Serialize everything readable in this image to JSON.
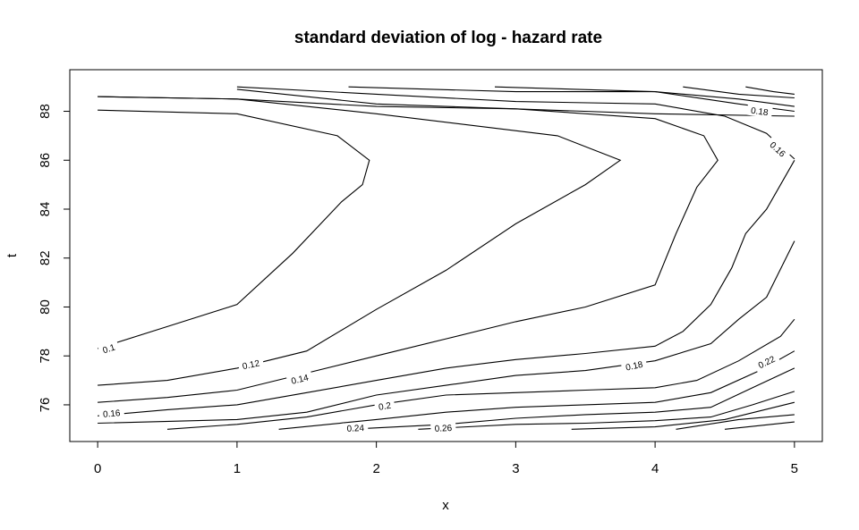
{
  "chart_data": {
    "type": "contour",
    "title": "standard deviation of log - hazard rate",
    "xlabel": "x",
    "ylabel": "t",
    "xlim": [
      -0.2,
      5.2
    ],
    "ylim": [
      74.5,
      89.7
    ],
    "x_ticks": [
      0,
      1,
      2,
      3,
      4,
      5
    ],
    "y_ticks": [
      76,
      78,
      80,
      82,
      84,
      86,
      88
    ],
    "grid": false,
    "legend": "none",
    "contours": [
      {
        "level": "0.1",
        "points": [
          [
            0,
            78.3
          ],
          [
            0.5,
            79.2
          ],
          [
            1,
            80.1
          ],
          [
            1.4,
            82.2
          ],
          [
            1.75,
            84.3
          ],
          [
            1.9,
            85.0
          ],
          [
            1.95,
            86.0
          ],
          [
            1.72,
            87.0
          ],
          [
            1,
            87.9
          ],
          [
            0,
            88.05
          ]
        ],
        "label_at": [
          0.08,
          78.3
        ]
      },
      {
        "level": null,
        "points": [
          [
            0,
            88.6
          ],
          [
            1,
            88.5
          ],
          [
            2,
            88.2
          ],
          [
            3,
            88.1
          ],
          [
            4,
            87.9
          ],
          [
            5,
            87.8
          ]
        ]
      },
      {
        "level": "0.12",
        "points": [
          [
            0,
            76.8
          ],
          [
            0.5,
            77.0
          ],
          [
            1,
            77.5
          ],
          [
            1.5,
            78.2
          ],
          [
            2,
            79.9
          ],
          [
            2.5,
            81.5
          ],
          [
            3,
            83.4
          ],
          [
            3.5,
            85.0
          ],
          [
            3.75,
            86.0
          ],
          [
            3.3,
            87.0
          ],
          [
            2,
            87.9
          ],
          [
            1,
            88.5
          ],
          [
            0,
            88.6
          ]
        ],
        "label_at": [
          1.1,
          77.65
        ]
      },
      {
        "level": "0.14",
        "points": [
          [
            0,
            76.1
          ],
          [
            0.5,
            76.3
          ],
          [
            1,
            76.6
          ],
          [
            1.5,
            77.3
          ],
          [
            2,
            78.0
          ],
          [
            2.5,
            78.7
          ],
          [
            3,
            79.4
          ],
          [
            3.5,
            80.0
          ],
          [
            4,
            80.9
          ],
          [
            4.15,
            83.0
          ],
          [
            4.3,
            84.9
          ],
          [
            4.45,
            86.0
          ],
          [
            4.35,
            87.0
          ],
          [
            4,
            87.7
          ],
          [
            3,
            88.1
          ],
          [
            2,
            88.3
          ],
          [
            1,
            88.9
          ]
        ],
        "label_at": [
          1.45,
          77.05
        ]
      },
      {
        "level": "0.16",
        "points": [
          [
            0,
            75.55
          ],
          [
            0.5,
            75.8
          ],
          [
            1,
            76.0
          ],
          [
            1.5,
            76.5
          ],
          [
            2,
            77.0
          ],
          [
            2.5,
            77.5
          ],
          [
            3,
            77.85
          ],
          [
            3.5,
            78.1
          ],
          [
            4,
            78.4
          ],
          [
            4.2,
            79.0
          ],
          [
            4.4,
            80.1
          ],
          [
            4.55,
            81.6
          ],
          [
            4.65,
            83.0
          ],
          [
            4.8,
            84.0
          ],
          [
            5,
            86.0
          ]
        ],
        "label_at": [
          0.1,
          75.65
        ]
      },
      {
        "level": "0.18",
        "points": [
          [
            0,
            75.25
          ],
          [
            1,
            75.4
          ],
          [
            1.5,
            75.7
          ],
          [
            2,
            76.4
          ],
          [
            2.5,
            76.8
          ],
          [
            3,
            77.2
          ],
          [
            3.5,
            77.4
          ],
          [
            4,
            77.8
          ],
          [
            4.4,
            78.5
          ],
          [
            4.6,
            79.5
          ],
          [
            4.8,
            80.4
          ],
          [
            5,
            82.7
          ]
        ],
        "label_at": [
          3.85,
          77.6
        ]
      },
      {
        "level": "0.16",
        "points": [
          [
            1,
            89.0
          ],
          [
            2,
            88.7
          ],
          [
            3,
            88.4
          ],
          [
            4,
            88.3
          ],
          [
            4.5,
            87.8
          ],
          [
            4.8,
            87.1
          ],
          [
            5,
            86.05
          ]
        ],
        "label_at": [
          4.88,
          86.45
        ]
      },
      {
        "level": "0.2",
        "points": [
          [
            0.5,
            75.0
          ],
          [
            1,
            75.2
          ],
          [
            1.5,
            75.5
          ],
          [
            2,
            76.0
          ],
          [
            2.5,
            76.4
          ],
          [
            3,
            76.5
          ],
          [
            3.5,
            76.6
          ],
          [
            4,
            76.7
          ],
          [
            4.3,
            77.0
          ],
          [
            4.6,
            77.8
          ],
          [
            4.9,
            78.8
          ],
          [
            5,
            79.5
          ]
        ],
        "label_at": [
          2.06,
          75.95
        ]
      },
      {
        "level": "0.18",
        "points": [
          [
            1.8,
            89.0
          ],
          [
            3,
            88.8
          ],
          [
            4,
            88.8
          ],
          [
            4.6,
            88.3
          ],
          [
            5,
            88.0
          ]
        ],
        "label_at": [
          4.75,
          88.0
        ]
      },
      {
        "level": "0.22",
        "points": [
          [
            1.3,
            75.0
          ],
          [
            2,
            75.4
          ],
          [
            2.5,
            75.7
          ],
          [
            3,
            75.9
          ],
          [
            3.5,
            76.0
          ],
          [
            4,
            76.1
          ],
          [
            4.4,
            76.5
          ],
          [
            4.75,
            77.4
          ],
          [
            5,
            78.2
          ]
        ],
        "label_at": [
          4.8,
          77.75
        ]
      },
      {
        "level": null,
        "points": [
          [
            2.85,
            89.0
          ],
          [
            4,
            88.8
          ],
          [
            4.6,
            88.5
          ],
          [
            5,
            88.2
          ]
        ]
      },
      {
        "level": "0.24",
        "points": [
          [
            1.8,
            75.0
          ],
          [
            2.5,
            75.2
          ],
          [
            3,
            75.45
          ],
          [
            3.5,
            75.6
          ],
          [
            4,
            75.7
          ],
          [
            4.4,
            75.9
          ],
          [
            4.7,
            76.7
          ],
          [
            5,
            77.5
          ]
        ],
        "label_at": [
          1.85,
          75.05
        ]
      },
      {
        "level": null,
        "points": [
          [
            4.2,
            89.0
          ],
          [
            4.6,
            88.7
          ],
          [
            5,
            88.55
          ]
        ]
      },
      {
        "level": "0.26",
        "points": [
          [
            2.3,
            75.0
          ],
          [
            3,
            75.2
          ],
          [
            3.5,
            75.25
          ],
          [
            4,
            75.35
          ],
          [
            4.4,
            75.5
          ],
          [
            4.7,
            76.0
          ],
          [
            5,
            76.55
          ]
        ],
        "label_at": [
          2.48,
          75.05
        ]
      },
      {
        "level": null,
        "points": [
          [
            4.65,
            89.0
          ],
          [
            4.85,
            88.8
          ],
          [
            5,
            88.7
          ]
        ]
      },
      {
        "level": null,
        "points": [
          [
            3.4,
            75.0
          ],
          [
            4,
            75.1
          ],
          [
            4.5,
            75.4
          ],
          [
            5,
            76.1
          ]
        ]
      },
      {
        "level": null,
        "points": [
          [
            4.15,
            75.0
          ],
          [
            4.6,
            75.4
          ],
          [
            5,
            75.6
          ]
        ]
      },
      {
        "level": null,
        "points": [
          [
            4.5,
            75.0
          ],
          [
            5,
            75.3
          ]
        ]
      }
    ]
  }
}
